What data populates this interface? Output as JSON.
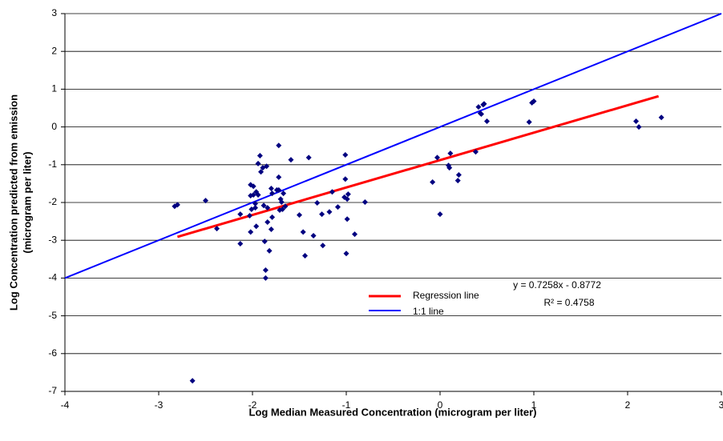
{
  "chart_data": {
    "type": "scatter",
    "xlabel": "Log Median Measured Concentration (microgram per liter)",
    "ylabel": [
      "Log Concentration predicted from emission",
      "(microgram per liter)"
    ],
    "xlim": [
      -4,
      3
    ],
    "xticks": [
      -4,
      -3,
      -2,
      -1,
      0,
      1,
      2,
      3
    ],
    "ylim": [
      -7,
      3
    ],
    "yticks": [
      -7,
      -6,
      -5,
      -4,
      -3,
      -2,
      -1,
      0,
      1,
      2,
      3
    ],
    "grid": true,
    "points": {
      "color": "#000080",
      "x": [
        -2.83,
        -2.8,
        -2.64,
        -2.5,
        -2.38,
        -2.13,
        -2.13,
        -2.03,
        -2.02,
        -2.02,
        -2.01,
        -2.02,
        -1.99,
        -1.99,
        -1.97,
        -1.97,
        -1.96,
        -1.96,
        -1.94,
        -1.94,
        -1.92,
        -1.91,
        -1.89,
        -1.88,
        -1.87,
        -1.86,
        -1.86,
        -1.85,
        -1.84,
        -1.84,
        -1.82,
        -1.8,
        -1.8,
        -1.79,
        -1.79,
        -1.74,
        -1.72,
        -1.72,
        -1.72,
        -1.71,
        -1.7,
        -1.69,
        -1.68,
        -1.67,
        -1.65,
        -1.59,
        -1.5,
        -1.46,
        -1.44,
        -1.4,
        -1.35,
        -1.31,
        -1.26,
        -1.25,
        -1.18,
        -1.15,
        -1.09,
        -1.02,
        -1.01,
        -1.01,
        -0.99,
        -0.99,
        -1.0,
        -0.98,
        -0.91,
        -0.8,
        -0.08,
        -0.03,
        0.0,
        0.09,
        0.1,
        0.11,
        0.2,
        0.19,
        0.38,
        0.41,
        0.43,
        0.44,
        0.46,
        0.47,
        0.5,
        0.95,
        0.98,
        1.0,
        2.09,
        2.12,
        2.36
      ],
      "y": [
        -2.1,
        -2.06,
        -6.72,
        -1.95,
        -2.69,
        -2.31,
        -3.09,
        -2.35,
        -1.53,
        -1.82,
        -2.18,
        -2.78,
        -1.8,
        -1.57,
        -2.03,
        -2.14,
        -2.63,
        -1.72,
        -1.8,
        -0.97,
        -0.76,
        -1.19,
        -1.08,
        -2.08,
        -3.03,
        -3.79,
        -4.0,
        -1.04,
        -2.52,
        -2.14,
        -3.28,
        -2.71,
        -1.63,
        -2.39,
        -1.76,
        -1.67,
        -0.49,
        -1.33,
        -1.67,
        -2.2,
        -1.91,
        -1.99,
        -2.18,
        -1.76,
        -2.1,
        -0.87,
        -2.33,
        -2.78,
        -3.41,
        -0.81,
        -2.88,
        -2.01,
        -2.31,
        -3.14,
        -2.25,
        -1.72,
        -2.12,
        -1.86,
        -0.74,
        -1.38,
        -1.91,
        -2.44,
        -3.35,
        -1.78,
        -2.84,
        -1.99,
        -1.46,
        -0.81,
        -2.31,
        -1.02,
        -1.08,
        -0.7,
        -1.27,
        -1.42,
        -0.66,
        0.53,
        0.36,
        0.34,
        0.59,
        0.61,
        0.15,
        0.13,
        0.64,
        0.68,
        0.15,
        0.0,
        0.25
      ]
    },
    "lines": [
      {
        "name": "Regression line",
        "color": "#ff0000",
        "x": [
          -2.8,
          2.33
        ],
        "y": [
          -2.91,
          0.814
        ]
      },
      {
        "name": "1:1 line",
        "color": "#0000ff",
        "x": [
          -4,
          3
        ],
        "y": [
          -4,
          3
        ]
      }
    ],
    "annotations": [
      "y = 0.7258x - 0.8772",
      "R² = 0.4758"
    ]
  }
}
